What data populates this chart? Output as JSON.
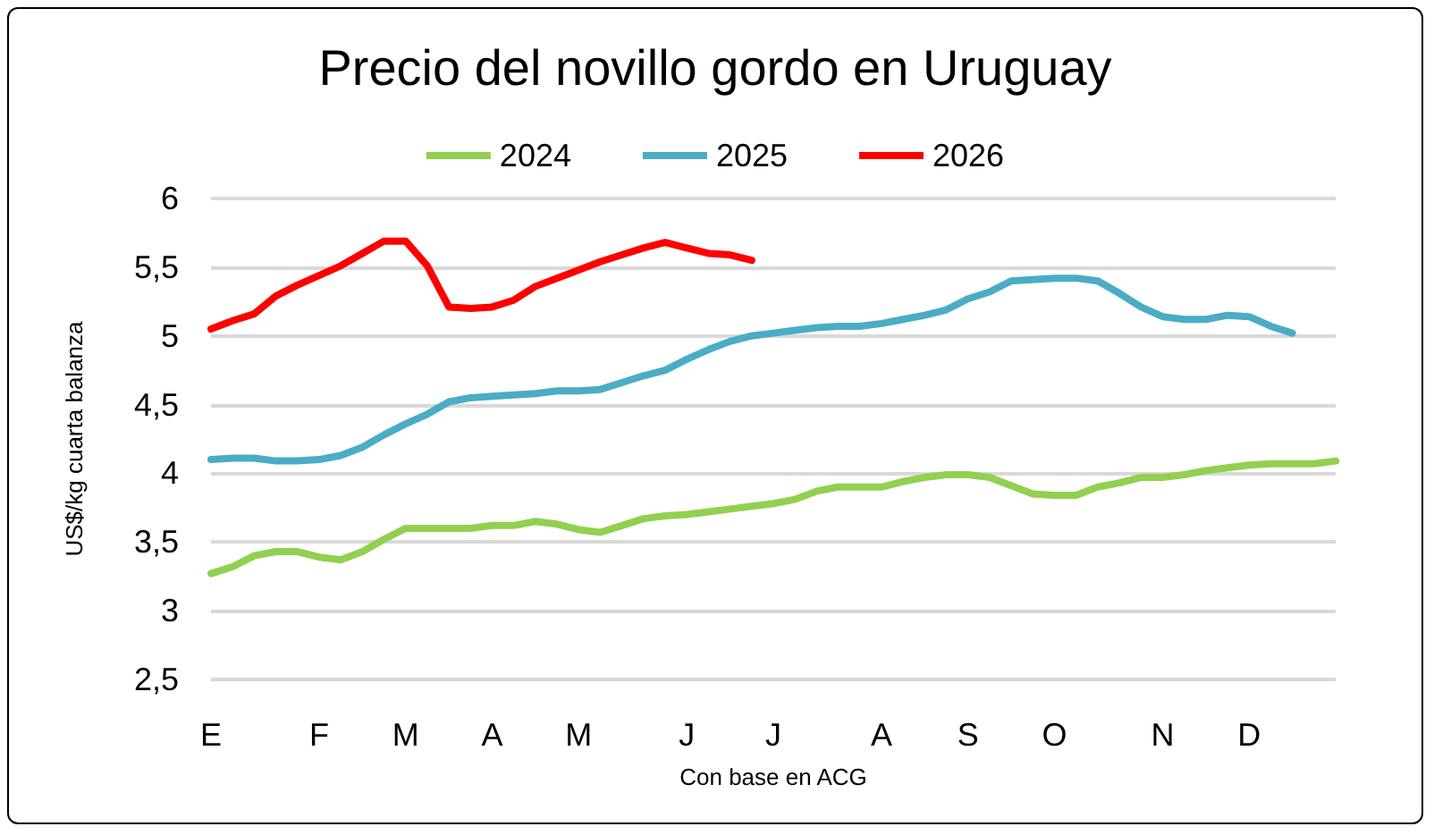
{
  "chart_data": {
    "type": "line",
    "title": "Precio del novillo gordo en Uruguay",
    "xlabel": "Con base en ACG",
    "ylabel": "US$/kg cuarta balanza",
    "categories": [
      "E",
      null,
      null,
      null,
      null,
      "F",
      null,
      null,
      null,
      "M",
      null,
      null,
      null,
      "A",
      null,
      null,
      null,
      "M",
      null,
      null,
      null,
      null,
      "J",
      null,
      null,
      null,
      "J",
      null,
      null,
      null,
      null,
      "A",
      null,
      null,
      null,
      "S",
      null,
      null,
      null,
      "O",
      null,
      null,
      null,
      null,
      "N",
      null,
      null,
      null,
      "D",
      null,
      null,
      null,
      null
    ],
    "series": [
      {
        "name": "2024",
        "color": "#92d050",
        "values": [
          3.27,
          3.32,
          3.4,
          3.43,
          3.43,
          3.39,
          3.37,
          3.43,
          3.52,
          3.6,
          3.6,
          3.6,
          3.6,
          3.62,
          3.62,
          3.65,
          3.63,
          3.59,
          3.57,
          3.62,
          3.67,
          3.69,
          3.7,
          3.72,
          3.74,
          3.76,
          3.78,
          3.81,
          3.87,
          3.9,
          3.9,
          3.9,
          3.94,
          3.97,
          3.99,
          3.99,
          3.97,
          3.91,
          3.85,
          3.84,
          3.84,
          3.9,
          3.93,
          3.97,
          3.97,
          3.99,
          4.02,
          4.04,
          4.06,
          4.07,
          4.07,
          4.07,
          4.09
        ]
      },
      {
        "name": "2025",
        "color": "#4bacc6",
        "values": [
          4.1,
          4.11,
          4.11,
          4.09,
          4.09,
          4.1,
          4.13,
          4.19,
          4.28,
          4.36,
          4.43,
          4.52,
          4.55,
          4.56,
          4.57,
          4.58,
          4.6,
          4.6,
          4.61,
          4.66,
          4.71,
          4.75,
          4.83,
          4.9,
          4.96,
          5.0,
          5.02,
          5.04,
          5.06,
          5.07,
          5.07,
          5.09,
          5.12,
          5.15,
          5.19,
          5.27,
          5.32,
          5.4,
          5.41,
          5.42,
          5.42,
          5.4,
          5.31,
          5.21,
          5.14,
          5.12,
          5.12,
          5.15,
          5.14,
          5.07,
          5.02,
          null,
          null
        ]
      },
      {
        "name": "2026",
        "color": "#ff0000",
        "values": [
          5.05,
          5.11,
          5.16,
          5.29,
          5.37,
          5.44,
          5.51,
          5.6,
          5.69,
          5.69,
          5.51,
          5.21,
          5.2,
          5.21,
          5.26,
          5.36,
          5.42,
          5.48,
          5.54,
          5.59,
          5.64,
          5.68,
          5.64,
          5.6,
          5.59,
          5.55,
          null,
          null,
          null,
          null,
          null,
          null,
          null,
          null,
          null,
          null,
          null,
          null,
          null,
          null,
          null,
          null,
          null,
          null,
          null,
          null,
          null,
          null,
          null,
          null,
          null,
          null,
          null
        ]
      }
    ],
    "ylim": [
      2.5,
      6
    ],
    "yticks": [
      {
        "value": 2.5,
        "label": "2,5"
      },
      3,
      {
        "value": 3.5,
        "label": "3,5"
      },
      4,
      {
        "value": 4.5,
        "label": "4,5"
      },
      5,
      {
        "value": 5.5,
        "label": "5,5"
      },
      6
    ],
    "grid": "y",
    "legend": "top",
    "marker": "none",
    "line_style": "solid"
  }
}
